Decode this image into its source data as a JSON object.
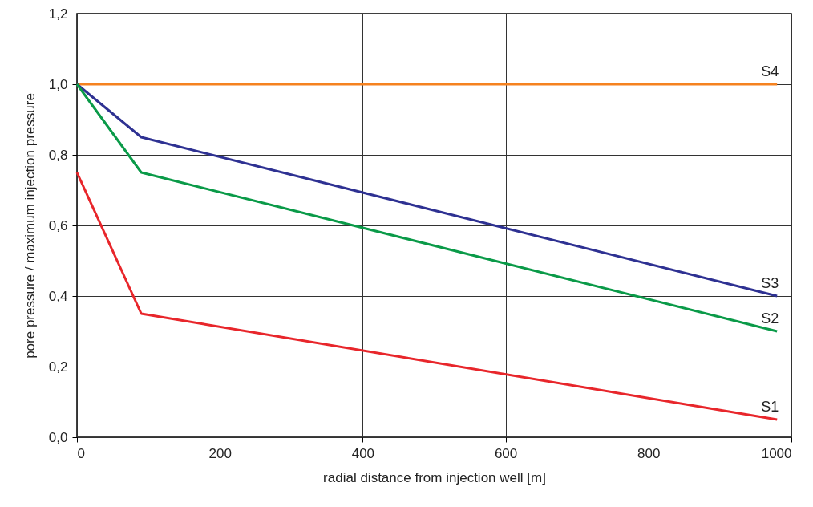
{
  "chart_data": {
    "type": "line",
    "xlabel": "radial distance from injection well [m]",
    "ylabel": "pore pressure / maximum injection pressure",
    "xlim": [
      0,
      1000
    ],
    "xticks": [
      0,
      200,
      400,
      600,
      800,
      1000
    ],
    "ylim": [
      0,
      1.2
    ],
    "yticks": [
      {
        "value": 0,
        "label": "0,0"
      },
      {
        "value": 0.2,
        "label": "0,2"
      },
      {
        "value": 0.4,
        "label": "0,4"
      },
      {
        "value": 0.6,
        "label": "0,6"
      },
      {
        "value": 0.8,
        "label": "0,8"
      },
      {
        "value": 1.0,
        "label": "1,0"
      },
      {
        "value": 1.2,
        "label": "1,2"
      }
    ],
    "grid": true,
    "legend": false,
    "marker": "none",
    "line_style": "solid",
    "series": [
      {
        "name": "S4",
        "color": "#f58220",
        "x": [
          0,
          980
        ],
        "values": [
          1,
          1
        ]
      },
      {
        "name": "S3",
        "color": "#2e3192",
        "x": [
          0,
          90,
          980
        ],
        "values": [
          1,
          0.85,
          0.4
        ]
      },
      {
        "name": "S2",
        "color": "#0a9a48",
        "x": [
          0,
          90,
          980
        ],
        "values": [
          1,
          0.75,
          0.3
        ]
      },
      {
        "name": "S1",
        "color": "#e8262b",
        "x": [
          0,
          90,
          980
        ],
        "values": [
          0.75,
          0.35,
          0.05
        ]
      }
    ]
  }
}
